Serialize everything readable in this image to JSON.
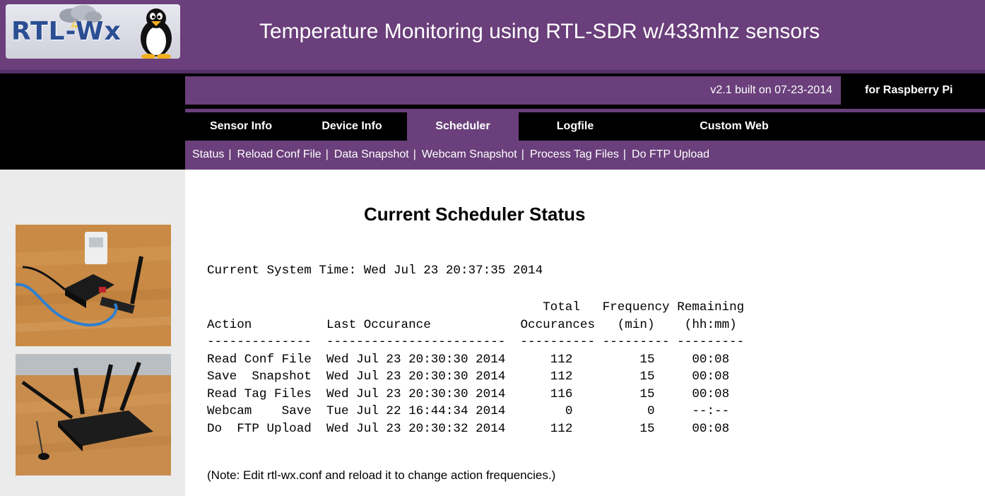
{
  "header": {
    "logo_text": "RTL-Wx",
    "title": "Temperature Monitoring using RTL-SDR w/433mhz sensors"
  },
  "version_bar": {
    "version": "v2.1 built on 07-23-2014",
    "platform": "for Raspberry Pi"
  },
  "tabs": [
    {
      "label": "Sensor Info",
      "active": false
    },
    {
      "label": "Device Info",
      "active": false
    },
    {
      "label": "Scheduler",
      "active": true
    },
    {
      "label": "Logfile",
      "active": false
    },
    {
      "label": "Custom Web",
      "active": false
    }
  ],
  "subnav": [
    {
      "label": "Status"
    },
    {
      "label": "Reload Conf File"
    },
    {
      "label": "Data Snapshot"
    },
    {
      "label": "Webcam Snapshot"
    },
    {
      "label": "Process Tag Files"
    },
    {
      "label": "Do FTP Upload"
    }
  ],
  "separator": "|",
  "content": {
    "title": "Current Scheduler Status",
    "system_time_label": "Current System Time:",
    "system_time": "Wed Jul 23 20:37:35 2014",
    "table": {
      "header_line1": [
        "",
        "",
        "Total",
        "Frequency",
        "Remaining"
      ],
      "header_line2": [
        "Action",
        "Last Occurance",
        "Occurances",
        "(min)",
        "(hh:mm)"
      ],
      "rows": [
        [
          "Read Conf File",
          "Wed Jul 23 20:30:30 2014",
          "112",
          "15",
          "00:08"
        ],
        [
          "Save  Snapshot",
          "Wed Jul 23 20:30:30 2014",
          "112",
          "15",
          "00:08"
        ],
        [
          "Read Tag Files",
          "Wed Jul 23 20:30:30 2014",
          "116",
          "15",
          "00:08"
        ],
        [
          "Webcam    Save",
          "Tue Jul 22 16:44:34 2014",
          "0",
          "0",
          "--:--"
        ],
        [
          "Do  FTP Upload",
          "Wed Jul 23 20:30:32 2014",
          "112",
          "15",
          "00:08"
        ]
      ]
    },
    "note": "(Note: Edit rtl-wx.conf and reload it to change action frequencies.)"
  },
  "colors": {
    "purple": "#6a3f7b",
    "black": "#000000",
    "sidebar": "#ebebeb"
  }
}
